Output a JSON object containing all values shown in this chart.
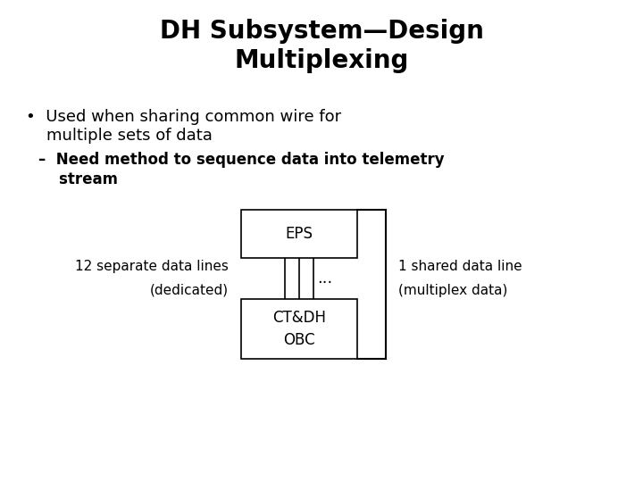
{
  "title_line1": "DH Subsystem—Design",
  "title_line2": "Multiplexing",
  "bullet1_line1": "•  Used when sharing common wire for",
  "bullet1_line2": "    multiple sets of data",
  "sub_bullet1": "–  Need method to sequence data into telemetry",
  "sub_bullet2": "    stream",
  "left_label_line1": "12 separate data lines",
  "left_label_line2": "(dedicated)",
  "right_label_line1": "1 shared data line",
  "right_label_line2": "(multiplex data)",
  "eps_label": "EPS",
  "obc_label": "CT&DH\nOBC",
  "dots_label": "...",
  "bg_color": "#ffffff",
  "text_color": "#000000",
  "box_edge_color": "#000000",
  "box_face_color": "#ffffff",
  "title_fontsize": 20,
  "body_fontsize": 13,
  "sub_fontsize": 12,
  "label_fontsize": 11,
  "diagram_fontsize": 12
}
